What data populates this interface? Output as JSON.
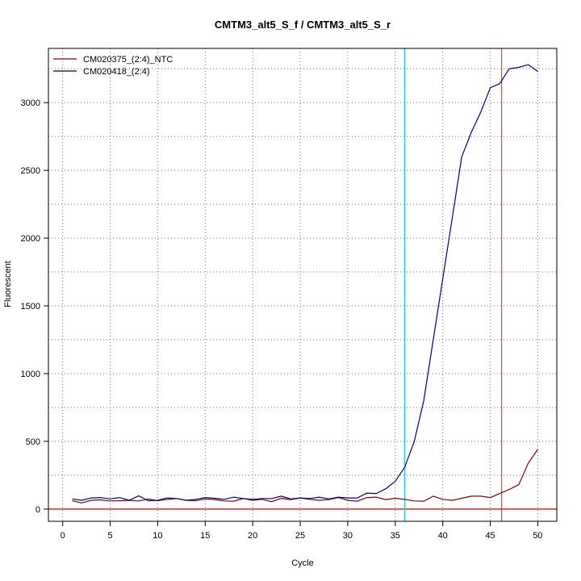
{
  "chart_data": {
    "type": "line",
    "title": "CMTM3_alt5_S_f / CMTM3_alt5_S_r",
    "xlabel": "Cycle",
    "ylabel": "Fluorescent",
    "xlim": [
      -1.5,
      52
    ],
    "ylim": [
      -90,
      3400
    ],
    "x_ticks": [
      0,
      5,
      10,
      15,
      20,
      25,
      30,
      35,
      40,
      45,
      50
    ],
    "y_ticks": [
      0,
      500,
      1000,
      1500,
      2000,
      2500,
      3000
    ],
    "grid": true,
    "legend_position": "top-left",
    "baseline": 0,
    "threshold_line_x": 36,
    "threshold_color": "#00e5ee",
    "vertical_marker_x": 46.2,
    "vertical_marker_color": "#b03030",
    "baseline_color": "#cc0000",
    "x": [
      1,
      2,
      3,
      4,
      5,
      6,
      7,
      8,
      9,
      10,
      11,
      12,
      13,
      14,
      15,
      16,
      17,
      18,
      19,
      20,
      21,
      22,
      23,
      24,
      25,
      26,
      27,
      28,
      29,
      30,
      31,
      32,
      33,
      34,
      35,
      36,
      37,
      38,
      39,
      40,
      41,
      42,
      43,
      44,
      45,
      46,
      47,
      48,
      49,
      50
    ],
    "series": [
      {
        "name": "CM020375_(2:4)_NTC",
        "color": "#8b0000",
        "values": [
          62,
          45,
          65,
          68,
          60,
          62,
          65,
          60,
          75,
          62,
          72,
          78,
          65,
          62,
          75,
          70,
          60,
          58,
          78,
          65,
          72,
          55,
          80,
          70,
          82,
          72,
          65,
          70,
          85,
          65,
          58,
          85,
          88,
          70,
          80,
          72,
          60,
          58,
          95,
          72,
          65,
          80,
          95,
          95,
          85,
          115,
          145,
          180,
          340,
          440
        ]
      },
      {
        "name": "CM020418_(2:4)",
        "color": "#00008b",
        "values": [
          75,
          65,
          82,
          85,
          75,
          85,
          65,
          98,
          62,
          65,
          82,
          78,
          65,
          72,
          85,
          80,
          72,
          88,
          78,
          72,
          78,
          78,
          95,
          75,
          82,
          78,
          88,
          75,
          88,
          82,
          82,
          118,
          115,
          150,
          205,
          310,
          500,
          800,
          1250,
          1700,
          2150,
          2600,
          2780,
          2930,
          3110,
          3140,
          3250,
          3260,
          3280,
          3230
        ]
      }
    ]
  }
}
